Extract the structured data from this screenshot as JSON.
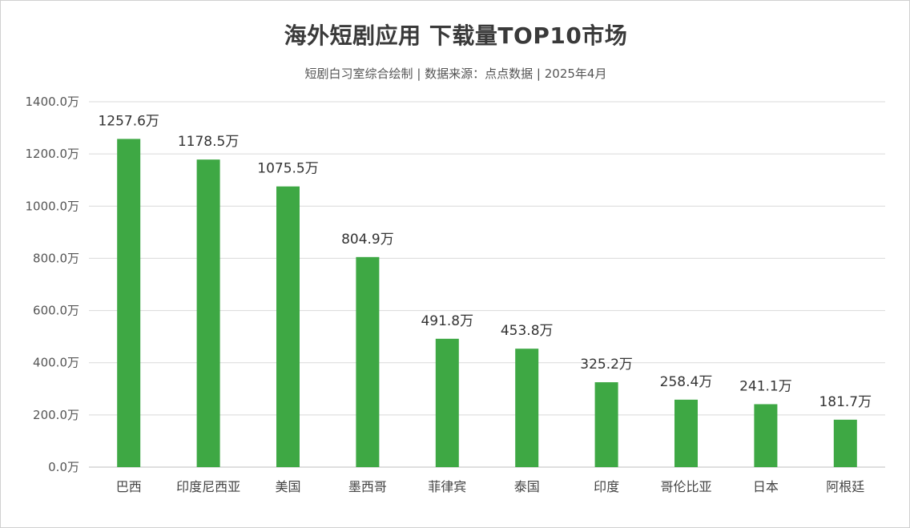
{
  "chart_data": {
    "type": "bar",
    "title": "海外短剧应用 下载量TOP10市场",
    "subtitle": "短剧白习室综合绘制 | 数据来源：点点数据 | 2025年4月",
    "categories": [
      "巴西",
      "印度尼西亚",
      "美国",
      "墨西哥",
      "菲律宾",
      "泰国",
      "印度",
      "哥伦比亚",
      "日本",
      "阿根廷"
    ],
    "values": [
      1257.6,
      1178.5,
      1075.5,
      804.9,
      491.8,
      453.8,
      325.2,
      258.4,
      241.1,
      181.7
    ],
    "unit": "万",
    "ylim": [
      0,
      1400
    ],
    "yticks": [
      0,
      200,
      400,
      600,
      800,
      1000,
      1200,
      1400
    ],
    "grid": true,
    "bar_color": "#3ea844",
    "grid_color": "#d9d9d9"
  }
}
